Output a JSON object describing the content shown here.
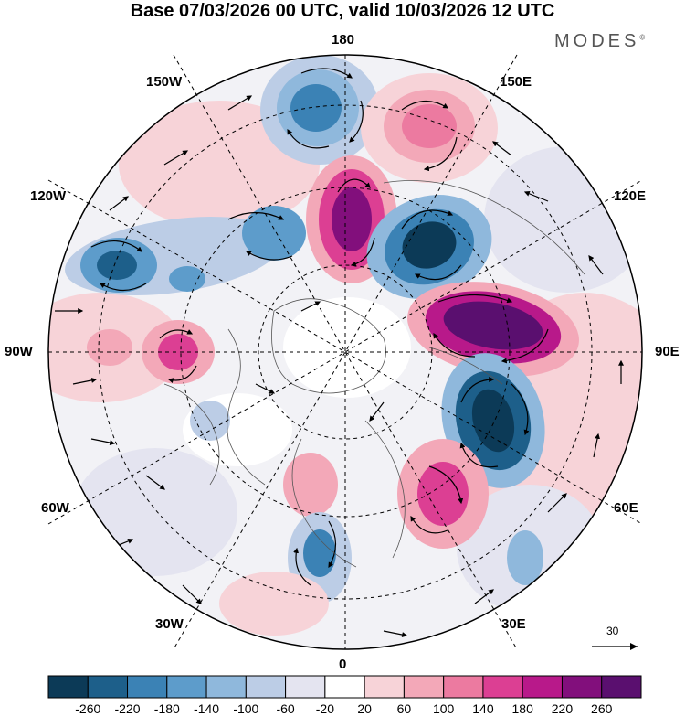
{
  "title": "Base 07/03/2026 00 UTC, valid 10/03/2026 12 UTC",
  "brand": {
    "name": "MODES",
    "mark": "©"
  },
  "longitude_labels": {
    "top": "180",
    "bottom": "0",
    "left": "90W",
    "right": "90E",
    "upper_left": "150W",
    "upper_right": "150E",
    "mid_left_upper": "120W",
    "mid_right_upper": "120E",
    "mid_left_lower": "60W",
    "mid_right_lower": "60E",
    "lower_left": "30W",
    "lower_right": "30E"
  },
  "reference_vector": {
    "value": "30"
  },
  "colorbar": {
    "labels": [
      "-260",
      "-220",
      "-180",
      "-140",
      "-100",
      "-60",
      "-20",
      "20",
      "60",
      "100",
      "140",
      "180",
      "220",
      "260"
    ],
    "colors": [
      "#0c3a57",
      "#1d5f8a",
      "#3b82b5",
      "#5d9ccb",
      "#8fb8dc",
      "#bccde6",
      "#e4e4f0",
      "#ffffff",
      "#f7d3d8",
      "#f3a8b8",
      "#ec7aa0",
      "#dc3f93",
      "#b8198a",
      "#820f7c",
      "#5a0f6f"
    ]
  }
}
